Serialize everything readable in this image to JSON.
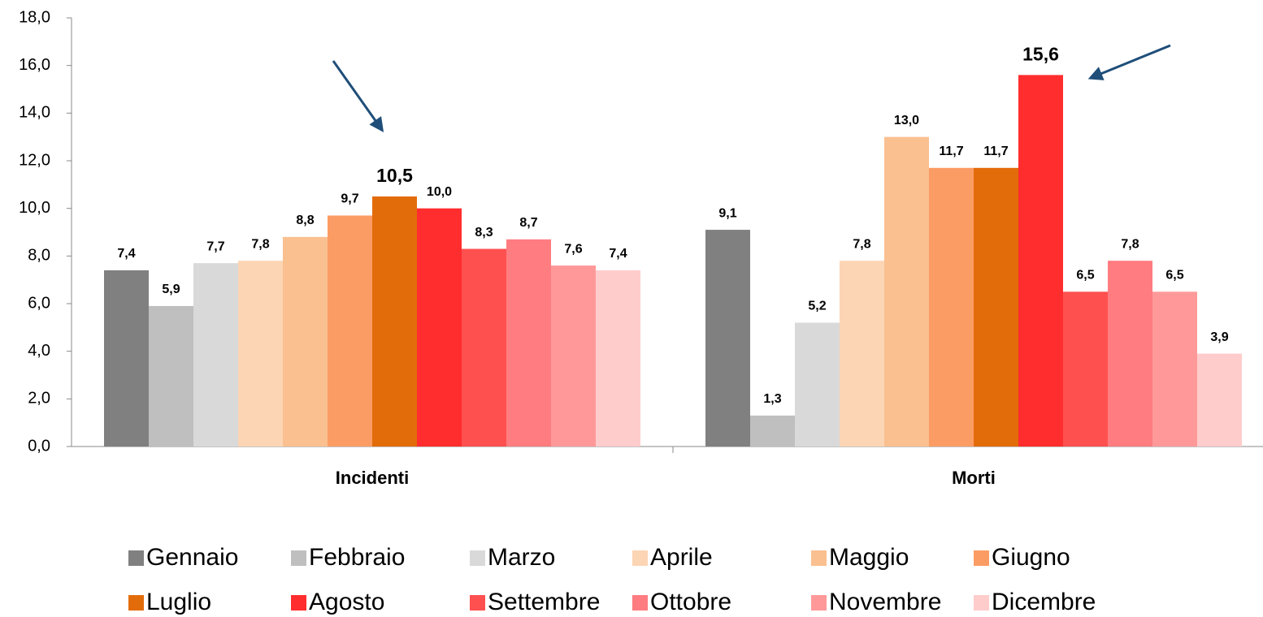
{
  "chart_data": {
    "type": "bar",
    "categories": [
      "Incidenti",
      "Morti"
    ],
    "ylim": [
      0,
      18
    ],
    "yticks": [
      {
        "value": 0,
        "label": "0,0"
      },
      {
        "value": 2,
        "label": "2,0"
      },
      {
        "value": 4,
        "label": "4,0"
      },
      {
        "value": 6,
        "label": "6,0"
      },
      {
        "value": 8,
        "label": "8,0"
      },
      {
        "value": 10,
        "label": "10,0"
      },
      {
        "value": 12,
        "label": "12,0"
      },
      {
        "value": 14,
        "label": "14,0"
      },
      {
        "value": 16,
        "label": "16,0"
      },
      {
        "value": 18,
        "label": "18,0"
      }
    ],
    "series": [
      {
        "name": "Gennaio",
        "color": "#808080",
        "values": [
          7.4,
          9.1
        ],
        "value_labels": [
          "7,4",
          "9,1"
        ]
      },
      {
        "name": "Febbraio",
        "color": "#bfbfbf",
        "values": [
          5.9,
          1.3
        ],
        "value_labels": [
          "5,9",
          "1,3"
        ]
      },
      {
        "name": "Marzo",
        "color": "#d9d9d9",
        "values": [
          7.7,
          5.2
        ],
        "value_labels": [
          "7,7",
          "5,2"
        ]
      },
      {
        "name": "Aprile",
        "color": "#fcd5b4",
        "values": [
          7.8,
          7.8
        ],
        "value_labels": [
          "7,8",
          "7,8"
        ]
      },
      {
        "name": "Maggio",
        "color": "#fac090",
        "values": [
          8.8,
          13.0
        ],
        "value_labels": [
          "8,8",
          "13,0"
        ]
      },
      {
        "name": "Giugno",
        "color": "#fb9c64",
        "values": [
          9.7,
          11.7
        ],
        "value_labels": [
          "9,7",
          "11,7"
        ]
      },
      {
        "name": "Luglio",
        "color": "#e36c0a",
        "values": [
          10.5,
          11.7
        ],
        "value_labels": [
          "10,5",
          "11,7"
        ]
      },
      {
        "name": "Agosto",
        "color": "#ff2d2d",
        "values": [
          10.0,
          15.6
        ],
        "value_labels": [
          "10,0",
          "15,6"
        ]
      },
      {
        "name": "Settembre",
        "color": "#ff5050",
        "values": [
          8.3,
          6.5
        ],
        "value_labels": [
          "8,3",
          "6,5"
        ]
      },
      {
        "name": "Ottobre",
        "color": "#ff7c80",
        "values": [
          8.7,
          7.8
        ],
        "value_labels": [
          "8,7",
          "7,8"
        ]
      },
      {
        "name": "Novembre",
        "color": "#ff9999",
        "values": [
          7.6,
          6.5
        ],
        "value_labels": [
          "7,6",
          "6,5"
        ]
      },
      {
        "name": "Dicembre",
        "color": "#ffcccc",
        "values": [
          7.4,
          3.9
        ],
        "value_labels": [
          "7,4",
          "3,9"
        ]
      }
    ],
    "grid": false,
    "legend": "bottom"
  }
}
